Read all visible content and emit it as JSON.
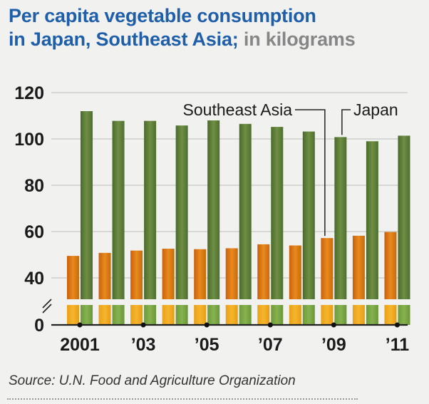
{
  "header": {
    "title_line1": "Per capita vegetable consumption",
    "title_line2": "in Japan, Southeast Asia;",
    "title_units": "in kilograms"
  },
  "source": "Source: U.N. Food and Agriculture Organization",
  "chart_data": {
    "type": "bar",
    "title": "Per capita vegetable consumption in Japan, Southeast Asia; in kilograms",
    "xlabel": "",
    "ylabel": "",
    "ylim": [
      0,
      120
    ],
    "axis_break": true,
    "categories": [
      "2001",
      "2002",
      "2003",
      "2004",
      "2005",
      "2006",
      "2007",
      "2008",
      "2009",
      "2010",
      "2011"
    ],
    "x_tick_labels": [
      "2001",
      "’03",
      "’05",
      "’07",
      "’09",
      "’11"
    ],
    "y_tick_labels": [
      "0",
      "40",
      "60",
      "80",
      "100",
      "120"
    ],
    "series": [
      {
        "name": "Southeast Asia",
        "color": "#e08a18",
        "values": [
          49.5,
          50.8,
          51.8,
          52.6,
          52.4,
          52.8,
          54.5,
          54.0,
          57.2,
          58.2,
          59.8
        ]
      },
      {
        "name": "Japan",
        "color": "#5e7d3a",
        "values": [
          112.0,
          107.8,
          107.8,
          105.8,
          108.0,
          106.5,
          105.2,
          103.2,
          100.8,
          99.0,
          101.4
        ]
      }
    ],
    "legend_placement": "top-right",
    "grid": true
  }
}
